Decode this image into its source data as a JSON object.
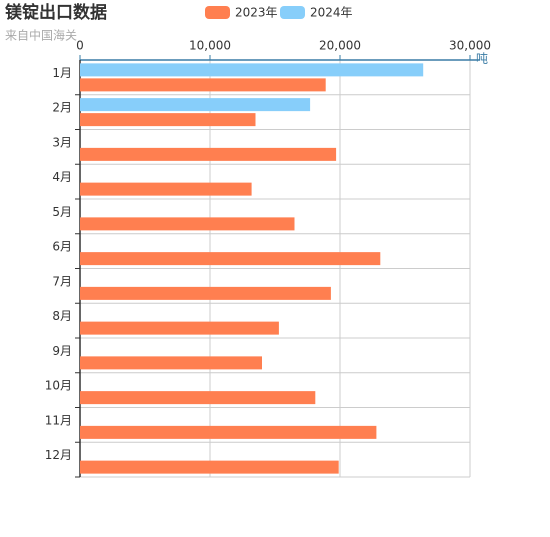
{
  "chart_data": {
    "type": "hbar",
    "title": "镁锭出口数据",
    "subtitle": "来自中国海关",
    "x_label": "吨",
    "categories": [
      "1月",
      "2月",
      "3月",
      "4月",
      "5月",
      "6月",
      "7月",
      "8月",
      "9月",
      "10月",
      "11月",
      "12月"
    ],
    "series": [
      {
        "name": "2023年",
        "color": "#ff7f50",
        "values": [
          18900,
          13500,
          19700,
          13200,
          16500,
          23100,
          19300,
          15300,
          14000,
          18100,
          22800,
          19900
        ]
      },
      {
        "name": "2024年",
        "color": "#87cefa",
        "values": [
          26400,
          17700,
          null,
          null,
          null,
          null,
          null,
          null,
          null,
          null,
          null,
          null
        ]
      }
    ],
    "xlim": [
      0,
      30000
    ],
    "xticks": [
      0,
      {
        "value": 10000,
        "label": "10,000"
      },
      {
        "value": 20000,
        "label": "20,000"
      },
      {
        "value": 30000,
        "label": "30,000"
      }
    ],
    "grid": true
  }
}
